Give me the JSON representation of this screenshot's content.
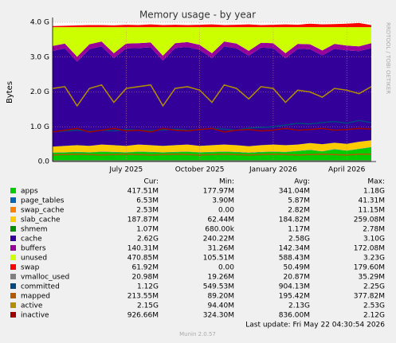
{
  "chart_data": {
    "type": "area",
    "title": "Memory usage - by year",
    "y_label": "Bytes",
    "side_note": "RRDTOOL / TOBI OETIKER",
    "last_update": "Last update: Fri May 22 04:30:54 2026",
    "footer": "Munin 2.0.57",
    "stat_headers": [
      "Cur:",
      "Min:",
      "Avg:",
      "Max:"
    ],
    "x": [
      null,
      null,
      null,
      null,
      null,
      null,
      "July 2025",
      null,
      null,
      null,
      null,
      null,
      "October 2025",
      null,
      null,
      null,
      null,
      null,
      "January 2026",
      null,
      null,
      null,
      null,
      null,
      "April 2026",
      null,
      null
    ],
    "ylim": [
      0,
      4
    ],
    "yticks": [
      {
        "value": 0,
        "label": "0.0"
      },
      {
        "value": 1,
        "label": "1.0 G"
      },
      {
        "value": 2,
        "label": "2.0 G"
      },
      {
        "value": 3,
        "label": "3.0 G"
      },
      {
        "value": 4,
        "label": "4.0 G"
      }
    ],
    "grid": true,
    "series": [
      {
        "name": "apps",
        "kind": "area",
        "color": "#00cc00",
        "stats": [
          "417.51M",
          "177.97M",
          "341.04M",
          "1.18G"
        ],
        "values": [
          0.25,
          0.26,
          0.27,
          0.26,
          0.28,
          0.27,
          0.26,
          0.28,
          0.27,
          0.26,
          0.27,
          0.28,
          0.26,
          0.27,
          0.28,
          0.27,
          0.25,
          0.27,
          0.28,
          0.27,
          0.3,
          0.33,
          0.29,
          0.35,
          0.31,
          0.36,
          0.41
        ]
      },
      {
        "name": "page_tables",
        "kind": "area",
        "color": "#0066b3",
        "stats": [
          "6.53M",
          "3.90M",
          "5.87M",
          "41.31M"
        ],
        "values": [
          0.006,
          0.006,
          0.006,
          0.006,
          0.006,
          0.006,
          0.006,
          0.006,
          0.006,
          0.006,
          0.006,
          0.006,
          0.006,
          0.006,
          0.006,
          0.006,
          0.006,
          0.006,
          0.006,
          0.006,
          0.006,
          0.006,
          0.006,
          0.006,
          0.006,
          0.006,
          0.006
        ]
      },
      {
        "name": "swap_cache",
        "kind": "area",
        "color": "#ff8000",
        "stats": [
          "2.53M",
          "0.00",
          "2.82M",
          "11.15M"
        ],
        "values": [
          0.003,
          0.003,
          0.003,
          0.003,
          0.003,
          0.003,
          0.003,
          0.003,
          0.003,
          0.003,
          0.003,
          0.003,
          0.003,
          0.003,
          0.003,
          0.003,
          0.003,
          0.003,
          0.003,
          0.003,
          0.003,
          0.003,
          0.003,
          0.003,
          0.003,
          0.003,
          0.003
        ]
      },
      {
        "name": "slab_cache",
        "kind": "area",
        "color": "#ffcc00",
        "stats": [
          "187.87M",
          "62.44M",
          "184.82M",
          "259.08M"
        ],
        "values": [
          0.17,
          0.18,
          0.19,
          0.18,
          0.2,
          0.19,
          0.18,
          0.2,
          0.19,
          0.18,
          0.19,
          0.2,
          0.18,
          0.19,
          0.2,
          0.19,
          0.18,
          0.19,
          0.2,
          0.19,
          0.18,
          0.19,
          0.2,
          0.18,
          0.19,
          0.2,
          0.19
        ]
      },
      {
        "name": "shmem",
        "kind": "area",
        "color": "#008f00",
        "stats": [
          "1.07M",
          "680.00k",
          "1.17M",
          "2.78M"
        ],
        "values": [
          0.001,
          0.001,
          0.001,
          0.001,
          0.001,
          0.001,
          0.001,
          0.001,
          0.001,
          0.001,
          0.001,
          0.001,
          0.001,
          0.001,
          0.001,
          0.001,
          0.001,
          0.001,
          0.001,
          0.001,
          0.001,
          0.001,
          0.001,
          0.001,
          0.001,
          0.001,
          0.001
        ]
      },
      {
        "name": "cache",
        "kind": "area",
        "color": "#330099",
        "stats": [
          "2.62G",
          "240.22M",
          "2.58G",
          "3.10G"
        ],
        "values": [
          2.75,
          2.8,
          2.4,
          2.78,
          2.82,
          2.5,
          2.8,
          2.77,
          2.81,
          2.45,
          2.79,
          2.8,
          2.76,
          2.5,
          2.82,
          2.78,
          2.6,
          2.8,
          2.77,
          2.5,
          2.75,
          2.7,
          2.55,
          2.7,
          2.68,
          2.6,
          2.65
        ]
      },
      {
        "name": "buffers",
        "kind": "area",
        "color": "#990099",
        "stats": [
          "140.31M",
          "31.26M",
          "142.34M",
          "172.08M"
        ],
        "values": [
          0.14,
          0.14,
          0.14,
          0.14,
          0.14,
          0.14,
          0.14,
          0.14,
          0.14,
          0.14,
          0.14,
          0.14,
          0.14,
          0.14,
          0.14,
          0.14,
          0.14,
          0.14,
          0.14,
          0.14,
          0.14,
          0.14,
          0.14,
          0.14,
          0.14,
          0.14,
          0.14
        ]
      },
      {
        "name": "unused",
        "kind": "area",
        "color": "#ccff00",
        "stats": [
          "470.85M",
          "105.51M",
          "588.43M",
          "3.23G"
        ],
        "values": [
          0.54,
          0.47,
          0.85,
          0.49,
          0.41,
          0.75,
          0.47,
          0.46,
          0.44,
          0.82,
          0.46,
          0.43,
          0.51,
          0.75,
          0.41,
          0.47,
          0.68,
          0.45,
          0.46,
          0.75,
          0.48,
          0.49,
          0.67,
          0.48,
          0.53,
          0.55,
          0.46
        ]
      },
      {
        "name": "swap",
        "kind": "area",
        "color": "#ff0000",
        "stats": [
          "61.92M",
          "0.00",
          "50.49M",
          "179.60M"
        ],
        "values": [
          0.03,
          0.04,
          0.05,
          0.06,
          0.06,
          0.05,
          0.07,
          0.06,
          0.08,
          0.06,
          0.07,
          0.06,
          0.07,
          0.08,
          0.06,
          0.07,
          0.08,
          0.06,
          0.07,
          0.08,
          0.07,
          0.1,
          0.08,
          0.09,
          0.1,
          0.12,
          0.06
        ]
      },
      {
        "name": "vmalloc_used",
        "kind": "line",
        "color": "#808080",
        "stats": [
          "20.98M",
          "19.26M",
          "20.87M",
          "35.29M"
        ],
        "values": [
          0.02,
          0.02,
          0.02,
          0.02,
          0.02,
          0.02,
          0.02,
          0.02,
          0.02,
          0.02,
          0.02,
          0.02,
          0.02,
          0.02,
          0.02,
          0.02,
          0.02,
          0.02,
          0.02,
          0.02,
          0.02,
          0.02,
          0.02,
          0.02,
          0.02,
          0.02,
          0.02
        ]
      },
      {
        "name": "committed",
        "kind": "line",
        "color": "#00487d",
        "stats": [
          "1.12G",
          "549.53M",
          "904.13M",
          "2.25G"
        ],
        "values": [
          0.85,
          0.88,
          0.9,
          0.87,
          0.9,
          0.88,
          0.92,
          0.9,
          0.89,
          0.91,
          0.93,
          0.9,
          0.92,
          0.95,
          0.93,
          0.9,
          0.96,
          0.98,
          1.0,
          1.05,
          1.1,
          1.08,
          1.12,
          1.15,
          1.1,
          1.18,
          1.12
        ]
      },
      {
        "name": "mapped",
        "kind": "line",
        "color": "#b35a00",
        "stats": [
          "213.55M",
          "89.20M",
          "195.42M",
          "377.82M"
        ],
        "values": [
          0.19,
          0.2,
          0.21,
          0.2,
          0.19,
          0.2,
          0.21,
          0.2,
          0.19,
          0.2,
          0.21,
          0.2,
          0.19,
          0.2,
          0.21,
          0.2,
          0.19,
          0.2,
          0.21,
          0.2,
          0.19,
          0.2,
          0.21,
          0.2,
          0.19,
          0.21,
          0.21
        ]
      },
      {
        "name": "active",
        "kind": "line",
        "color": "#b38f00",
        "stats": [
          "2.15G",
          "94.40M",
          "2.13G",
          "2.53G"
        ],
        "values": [
          2.1,
          2.15,
          1.6,
          2.1,
          2.2,
          1.7,
          2.1,
          2.15,
          2.2,
          1.6,
          2.1,
          2.15,
          2.05,
          1.7,
          2.2,
          2.1,
          1.8,
          2.15,
          2.1,
          1.7,
          2.05,
          2.0,
          1.85,
          2.1,
          2.05,
          1.95,
          2.15
        ]
      },
      {
        "name": "inactive",
        "kind": "line",
        "color": "#a00000",
        "stats": [
          "926.66M",
          "324.30M",
          "836.00M",
          "2.12G"
        ],
        "values": [
          0.85,
          0.9,
          0.95,
          0.85,
          0.9,
          0.95,
          0.88,
          0.9,
          0.85,
          0.95,
          0.9,
          0.88,
          0.92,
          0.95,
          0.85,
          0.9,
          0.92,
          0.88,
          0.9,
          0.95,
          0.9,
          0.92,
          0.95,
          0.9,
          0.92,
          0.95,
          0.93
        ]
      }
    ]
  }
}
